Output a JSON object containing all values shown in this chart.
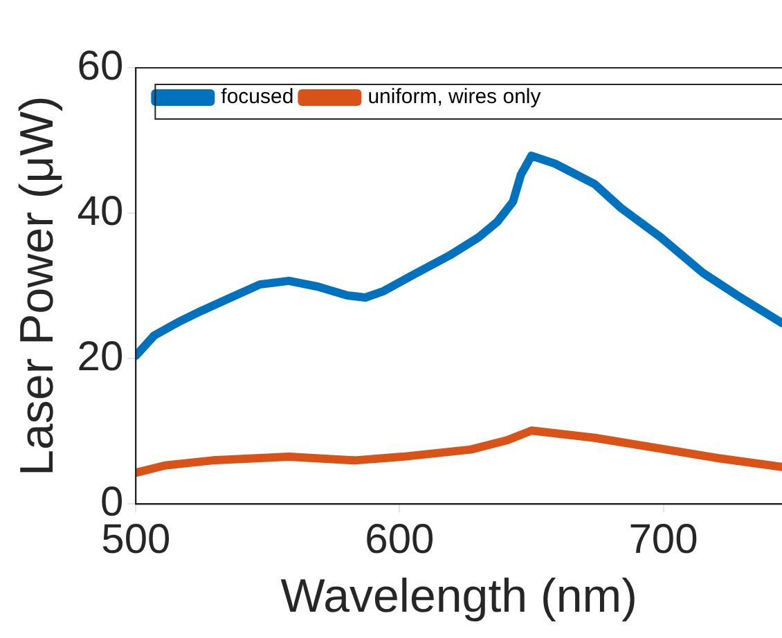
{
  "chart_data": {
    "type": "line",
    "xlabel": "Wavelength (nm)",
    "ylabel": "Laser Power (μW)",
    "xlim": [
      500,
      745
    ],
    "xticks": [
      500,
      600,
      700
    ],
    "ylim": [
      0,
      60
    ],
    "yticks": [
      0,
      20,
      40,
      60
    ],
    "grid": false,
    "legend": "top left",
    "marker": "none",
    "line_style": "solid",
    "series": [
      {
        "name": "focused",
        "color": "#0072bd",
        "x": [
          500,
          507,
          516,
          525,
          536,
          547,
          558,
          569,
          580,
          587,
          594,
          605,
          619,
          630,
          637,
          643,
          646,
          650,
          659,
          674,
          684,
          699,
          715,
          728,
          745
        ],
        "values": [
          20.4,
          23.2,
          25.0,
          26.6,
          28.4,
          30.2,
          30.7,
          29.9,
          28.7,
          28.4,
          29.3,
          31.5,
          34.2,
          36.7,
          38.8,
          41.6,
          45.3,
          47.9,
          46.8,
          44.0,
          40.7,
          36.7,
          31.8,
          28.7,
          24.9
        ]
      },
      {
        "name": "uniform, wires only",
        "color": "#d95319",
        "x": [
          500,
          511,
          529,
          558,
          583,
          601,
          627,
          641,
          650,
          674,
          701,
          721,
          745
        ],
        "values": [
          4.3,
          5.3,
          6.0,
          6.5,
          6.0,
          6.5,
          7.5,
          8.8,
          10.1,
          9.1,
          7.5,
          6.3,
          5.1
        ]
      }
    ]
  }
}
